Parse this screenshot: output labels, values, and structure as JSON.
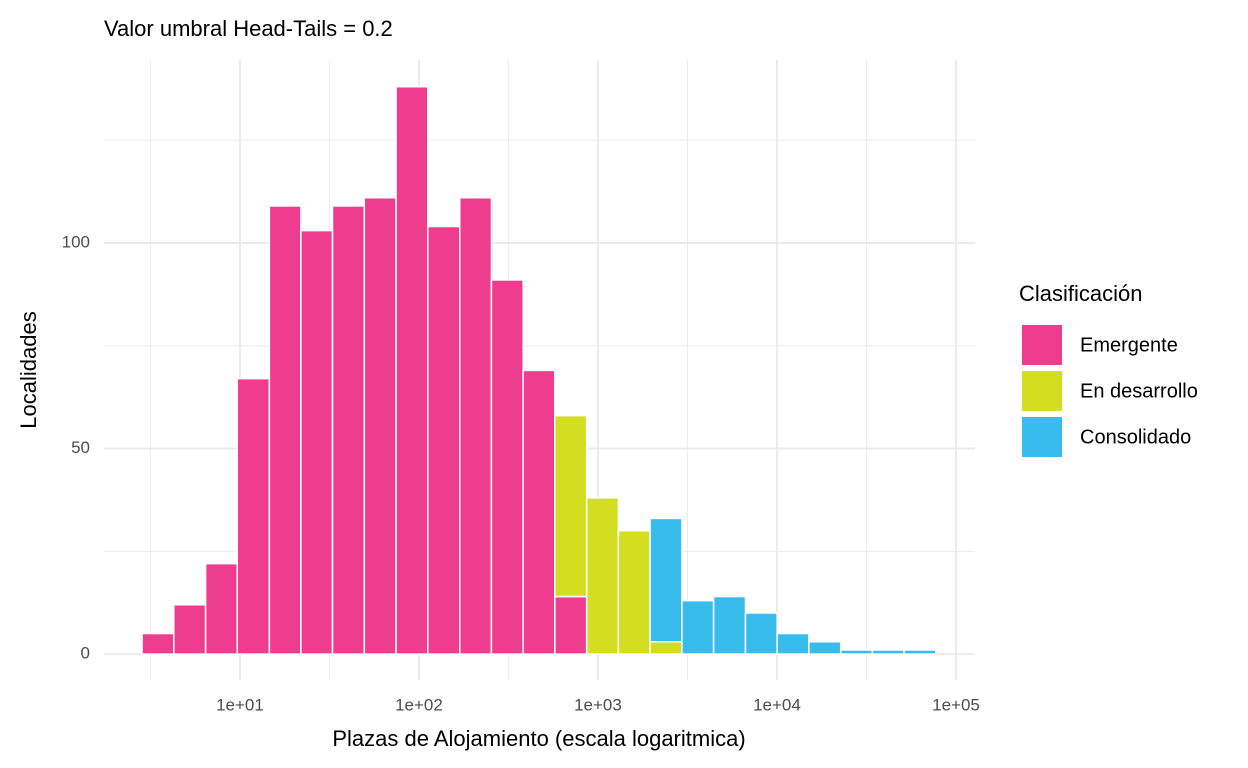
{
  "chart_data": {
    "type": "histogram",
    "title": "Valor umbral Head-Tails = 0.2",
    "x_label": "Plazas de Alojamiento (escala logaritmica)",
    "y_label": "Localidades",
    "legend_title": "Clasificación",
    "legend": "right",
    "x_scale": "log",
    "grid": true,
    "bins": [
      2.84,
      4.27,
      6.43,
      9.66,
      14.6,
      21.9,
      32.9,
      49.5,
      74.5,
      112,
      169,
      254,
      382,
      574,
      865,
      1300,
      1954,
      2944,
      4426,
      6668,
      10023,
      15070,
      22700,
      34120,
      51290,
      77270
    ],
    "series": [
      {
        "name": "Emergente",
        "color": "#ee3c8e",
        "values": [
          5,
          12,
          22,
          67,
          109,
          103,
          109,
          111,
          138,
          104,
          111,
          91,
          69,
          14,
          0,
          0,
          0,
          0,
          0,
          0,
          0,
          0,
          0,
          0,
          0
        ]
      },
      {
        "name": "En desarrollo",
        "color": "#d4de20",
        "values": [
          0,
          0,
          0,
          0,
          0,
          0,
          0,
          0,
          0,
          0,
          0,
          0,
          0,
          44,
          38,
          30,
          3,
          0,
          0,
          0,
          0,
          0,
          0,
          0,
          0
        ]
      },
      {
        "name": "Consolidado",
        "color": "#38bceb",
        "values": [
          0,
          0,
          0,
          0,
          0,
          0,
          0,
          0,
          0,
          0,
          0,
          0,
          0,
          0,
          0,
          0,
          30,
          13,
          14,
          10,
          5,
          3,
          1,
          1,
          1
        ]
      }
    ],
    "xlim": [
      1.74,
      127700
    ],
    "xticks": [
      {
        "value": 10,
        "label": "1e+01"
      },
      {
        "value": 100,
        "label": "1e+02"
      },
      {
        "value": 1000,
        "label": "1e+03"
      },
      {
        "value": 10000,
        "label": "1e+04"
      },
      {
        "value": 100000,
        "label": "1e+05"
      }
    ],
    "ylim": [
      -6.3,
      144.5
    ],
    "yticks": [
      0,
      50,
      100
    ]
  }
}
